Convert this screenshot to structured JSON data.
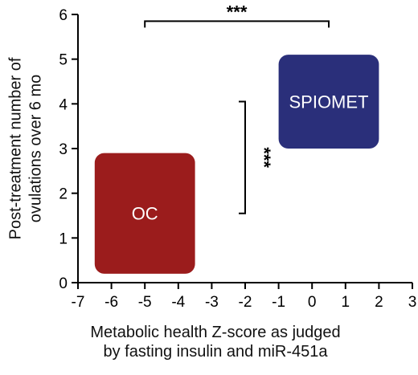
{
  "chart_data": {
    "type": "scatter",
    "xlabel": [
      "Metabolic health Z-score as judged",
      "by fasting insulin and miR-451a"
    ],
    "ylabel": [
      "Post-treatment number of",
      "ovulations over 6 mo"
    ],
    "xlim": [
      -7,
      3
    ],
    "ylim": [
      0,
      6
    ],
    "xticks": [
      -7,
      -6,
      -5,
      -4,
      -3,
      -2,
      -1,
      0,
      1,
      2,
      3
    ],
    "yticks": [
      0,
      1,
      2,
      3,
      4,
      5,
      6
    ],
    "groups": [
      {
        "name": "OC",
        "x_range": [
          -6.5,
          -3.5
        ],
        "y_range": [
          0.2,
          2.9
        ],
        "color": "#9b1c1c"
      },
      {
        "name": "SPIOMET",
        "x_range": [
          -1,
          2
        ],
        "y_range": [
          3.0,
          5.1
        ],
        "color": "#2a2f7a"
      }
    ],
    "annotations": [
      {
        "text": "***",
        "orientation": "horizontal",
        "x_range": [
          -5,
          0.5
        ],
        "y": 5.85
      },
      {
        "text": "***",
        "orientation": "vertical",
        "x": -2,
        "y_range": [
          1.55,
          4.05
        ]
      }
    ],
    "grid": false,
    "legend": "none"
  }
}
